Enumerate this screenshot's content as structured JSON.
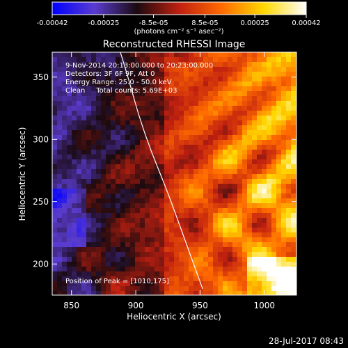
{
  "chart_data": {
    "type": "heatmap",
    "title": "Reconstructed RHESSI Image",
    "xlabel": "Heliocentric X (arcsec)",
    "ylabel": "Heliocentric Y (arcsec)",
    "xlim": [
      835,
      1025
    ],
    "ylim": [
      175,
      370
    ],
    "x_ticks": [
      850,
      900,
      950,
      1000
    ],
    "y_ticks": [
      200,
      250,
      300,
      350
    ],
    "annotations": [
      "9-Nov-2014 20:13:00.000 to 20:23:00.000",
      "Detectors: 3F 6F 9F, Att 0",
      "Energy Range: 25.0 - 50.0 keV",
      "Clean     Total counts: 5.69E+03"
    ],
    "peak_label": "Position of Peak = [1010,175]",
    "peak_position": [
      1010,
      175
    ],
    "colorbar": {
      "min": -0.00042,
      "max": 0.00042,
      "ticks": [
        "-0.00042",
        "-0.00025",
        "-8.5e-05",
        "8.5e-05",
        "0.00025",
        "0.00042"
      ],
      "tick_values": [
        -0.00042,
        -0.00025,
        -8.5e-05,
        8.5e-05,
        0.00025,
        0.00042
      ],
      "unit_label": "(photons cm⁻² s⁻¹ asec⁻²)",
      "colors": [
        "#0000ff",
        "#5a3cd0",
        "#1a0a10",
        "#c02010",
        "#ff6a00",
        "#ffd800",
        "#ffffff"
      ]
    },
    "limb_curve": {
      "x": [
        888,
        894,
        902,
        912,
        924,
        938,
        952
      ],
      "y": [
        370,
        350,
        320,
        290,
        260,
        220,
        180
      ]
    }
  },
  "footer": {
    "timestamp": "28-Jul-2017 08:43"
  }
}
